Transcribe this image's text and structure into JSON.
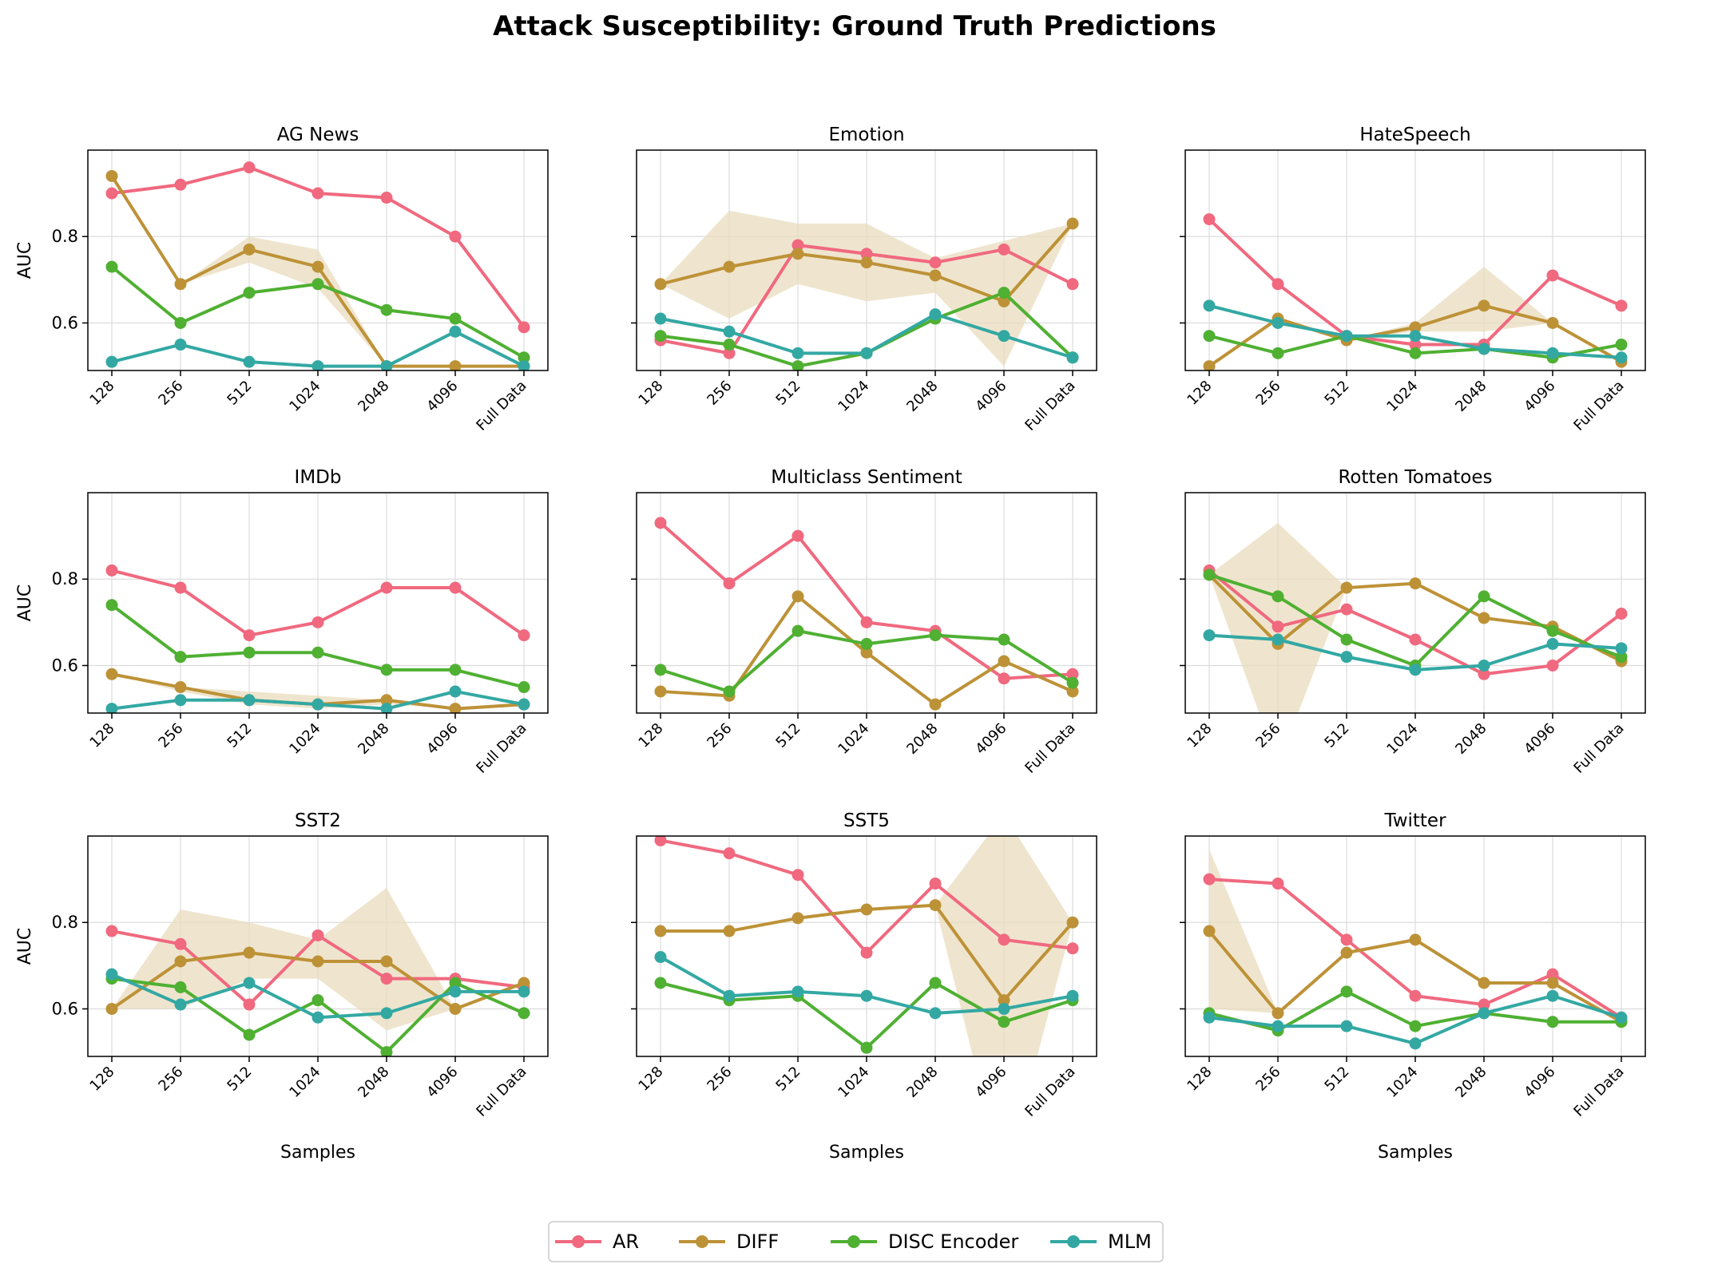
{
  "chart_data": {
    "type": "line",
    "title": "Attack Susceptibility: Ground Truth Predictions",
    "xlabel": "Samples",
    "ylabel": "AUC",
    "ylim": [
      0.49,
      1.0
    ],
    "yticks": [
      "0.6",
      "0.8"
    ],
    "categories": [
      "128",
      "256",
      "512",
      "1024",
      "2048",
      "4096",
      "Full Data"
    ],
    "series_styles": [
      {
        "name": "AR",
        "color": "#f0697f"
      },
      {
        "name": "DIFF",
        "color": "#bd9237"
      },
      {
        "name": "DISC Encoder",
        "color": "#4fb032"
      },
      {
        "name": "MLM",
        "color": "#33a8a3"
      }
    ],
    "band_color": "#e9dcbe",
    "legend": {
      "placement": "bottom-center",
      "entries": [
        "AR",
        "DIFF",
        "DISC Encoder",
        "MLM"
      ]
    },
    "panels": [
      {
        "title": "AG News",
        "series": [
          {
            "name": "AR",
            "values": [
              0.9,
              0.92,
              0.96,
              0.9,
              0.89,
              0.8,
              0.59
            ]
          },
          {
            "name": "DIFF",
            "values": [
              0.94,
              0.69,
              0.77,
              0.73,
              0.5,
              0.5,
              0.5
            ]
          },
          {
            "name": "DISC Encoder",
            "values": [
              0.73,
              0.6,
              0.67,
              0.69,
              0.63,
              0.61,
              0.52
            ]
          },
          {
            "name": "MLM",
            "values": [
              0.51,
              0.55,
              0.51,
              0.5,
              0.5,
              0.58,
              0.5
            ]
          }
        ],
        "band": {
          "series": "DIFF",
          "lower": [
            0.94,
            0.69,
            0.74,
            0.68,
            0.5,
            0.5,
            0.5
          ],
          "upper": [
            0.94,
            0.69,
            0.8,
            0.77,
            0.5,
            0.5,
            0.5
          ]
        }
      },
      {
        "title": "Emotion",
        "series": [
          {
            "name": "AR",
            "values": [
              0.56,
              0.53,
              0.78,
              0.76,
              0.74,
              0.77,
              0.69
            ]
          },
          {
            "name": "DIFF",
            "values": [
              0.69,
              0.73,
              0.76,
              0.74,
              0.71,
              0.65,
              0.83
            ]
          },
          {
            "name": "DISC Encoder",
            "values": [
              0.57,
              0.55,
              0.5,
              0.53,
              0.61,
              0.67,
              0.52
            ]
          },
          {
            "name": "MLM",
            "values": [
              0.61,
              0.58,
              0.53,
              0.53,
              0.62,
              0.57,
              0.52
            ]
          }
        ],
        "band": {
          "series": "DIFF",
          "lower": [
            0.69,
            0.61,
            0.69,
            0.65,
            0.67,
            0.5,
            0.83
          ],
          "upper": [
            0.69,
            0.86,
            0.83,
            0.83,
            0.75,
            0.79,
            0.83
          ]
        }
      },
      {
        "title": "HateSpeech",
        "series": [
          {
            "name": "AR",
            "values": [
              0.84,
              0.69,
              0.57,
              0.55,
              0.55,
              0.71,
              0.64
            ]
          },
          {
            "name": "DIFF",
            "values": [
              0.5,
              0.61,
              0.56,
              0.59,
              0.64,
              0.6,
              0.51
            ]
          },
          {
            "name": "DISC Encoder",
            "values": [
              0.57,
              0.53,
              0.57,
              0.53,
              0.54,
              0.52,
              0.55
            ]
          },
          {
            "name": "MLM",
            "values": [
              0.64,
              0.6,
              0.57,
              0.57,
              0.54,
              0.53,
              0.52
            ]
          }
        ],
        "band": {
          "series": "DIFF",
          "lower": [
            0.5,
            0.61,
            0.56,
            0.58,
            0.58,
            0.6,
            0.51
          ],
          "upper": [
            0.5,
            0.61,
            0.56,
            0.6,
            0.73,
            0.6,
            0.51
          ]
        }
      },
      {
        "title": "IMDb",
        "series": [
          {
            "name": "AR",
            "values": [
              0.82,
              0.78,
              0.67,
              0.7,
              0.78,
              0.78,
              0.67
            ]
          },
          {
            "name": "DIFF",
            "values": [
              0.58,
              0.55,
              0.52,
              0.51,
              0.52,
              0.5,
              0.51
            ]
          },
          {
            "name": "DISC Encoder",
            "values": [
              0.74,
              0.62,
              0.63,
              0.63,
              0.59,
              0.59,
              0.55
            ]
          },
          {
            "name": "MLM",
            "values": [
              0.5,
              0.52,
              0.52,
              0.51,
              0.5,
              0.54,
              0.51
            ]
          }
        ],
        "band": {
          "series": "DIFF",
          "lower": [
            0.58,
            0.54,
            0.51,
            0.5,
            0.51,
            0.5,
            0.51
          ],
          "upper": [
            0.58,
            0.55,
            0.54,
            0.53,
            0.52,
            0.5,
            0.51
          ]
        }
      },
      {
        "title": "Multiclass Sentiment",
        "series": [
          {
            "name": "AR",
            "values": [
              0.93,
              0.79,
              0.9,
              0.7,
              0.68,
              0.57,
              0.58
            ]
          },
          {
            "name": "DIFF",
            "values": [
              0.54,
              0.53,
              0.76,
              0.63,
              0.51,
              0.61,
              0.54
            ]
          },
          {
            "name": "DISC Encoder",
            "values": [
              0.59,
              0.54,
              0.68,
              0.65,
              0.67,
              0.66,
              0.56
            ]
          }
        ],
        "band": null
      },
      {
        "title": "Rotten Tomatoes",
        "series": [
          {
            "name": "AR",
            "values": [
              0.82,
              0.69,
              0.73,
              0.66,
              0.58,
              0.6,
              0.72
            ]
          },
          {
            "name": "DIFF",
            "values": [
              0.81,
              0.65,
              0.78,
              0.79,
              0.71,
              0.69,
              0.61
            ]
          },
          {
            "name": "DISC Encoder",
            "values": [
              0.81,
              0.76,
              0.66,
              0.6,
              0.76,
              0.68,
              0.62
            ]
          },
          {
            "name": "MLM",
            "values": [
              0.67,
              0.66,
              0.62,
              0.59,
              0.6,
              0.65,
              0.64
            ]
          }
        ],
        "band": {
          "series": "DIFF",
          "lower": [
            0.81,
            0.37,
            0.78,
            0.79,
            0.71,
            0.69,
            0.61
          ],
          "upper": [
            0.81,
            0.93,
            0.78,
            0.79,
            0.71,
            0.69,
            0.61
          ]
        }
      },
      {
        "title": "SST2",
        "series": [
          {
            "name": "AR",
            "values": [
              0.78,
              0.75,
              0.61,
              0.77,
              0.67,
              0.67,
              0.65
            ]
          },
          {
            "name": "DIFF",
            "values": [
              0.6,
              0.71,
              0.73,
              0.71,
              0.71,
              0.6,
              0.66
            ]
          },
          {
            "name": "DISC Encoder",
            "values": [
              0.67,
              0.65,
              0.54,
              0.62,
              0.5,
              0.66,
              0.59
            ]
          },
          {
            "name": "MLM",
            "values": [
              0.68,
              0.61,
              0.66,
              0.58,
              0.59,
              0.64,
              0.64
            ]
          }
        ],
        "band": {
          "series": "DIFF",
          "lower": [
            0.6,
            0.6,
            0.67,
            0.67,
            0.55,
            0.6,
            0.66
          ],
          "upper": [
            0.6,
            0.83,
            0.8,
            0.76,
            0.88,
            0.6,
            0.66
          ]
        }
      },
      {
        "title": "SST5",
        "series": [
          {
            "name": "AR",
            "values": [
              0.99,
              0.96,
              0.91,
              0.73,
              0.89,
              0.76,
              0.74
            ]
          },
          {
            "name": "DIFF",
            "values": [
              0.78,
              0.78,
              0.81,
              0.83,
              0.84,
              0.62,
              0.8
            ]
          },
          {
            "name": "DISC Encoder",
            "values": [
              0.66,
              0.62,
              0.63,
              0.51,
              0.66,
              0.57,
              0.62
            ]
          },
          {
            "name": "MLM",
            "values": [
              0.72,
              0.63,
              0.64,
              0.63,
              0.59,
              0.6,
              0.63
            ]
          }
        ],
        "band": {
          "series": "DIFF",
          "lower": [
            0.78,
            0.78,
            0.81,
            0.83,
            0.84,
            0.2,
            0.8
          ],
          "upper": [
            0.78,
            0.78,
            0.81,
            0.83,
            0.84,
            1.05,
            0.8
          ]
        }
      },
      {
        "title": "Twitter",
        "series": [
          {
            "name": "AR",
            "values": [
              0.9,
              0.89,
              0.76,
              0.63,
              0.61,
              0.68,
              0.58
            ]
          },
          {
            "name": "DIFF",
            "values": [
              0.78,
              0.59,
              0.73,
              0.76,
              0.66,
              0.66,
              0.57
            ]
          },
          {
            "name": "DISC Encoder",
            "values": [
              0.59,
              0.55,
              0.64,
              0.56,
              0.59,
              0.57,
              0.57
            ]
          },
          {
            "name": "MLM",
            "values": [
              0.58,
              0.56,
              0.56,
              0.52,
              0.59,
              0.63,
              0.58
            ]
          }
        ],
        "band": {
          "series": "DIFF",
          "lower": [
            0.6,
            0.59,
            0.73,
            0.76,
            0.66,
            0.66,
            0.57
          ],
          "upper": [
            0.97,
            0.59,
            0.73,
            0.76,
            0.66,
            0.66,
            0.57
          ]
        }
      }
    ]
  }
}
